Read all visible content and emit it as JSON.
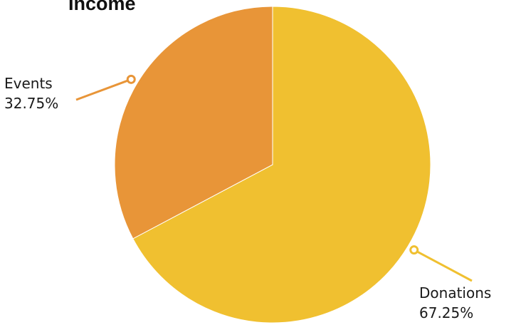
{
  "chart_data": {
    "type": "pie",
    "title": "Income",
    "slices": [
      {
        "label": "Donations",
        "value": 67.25,
        "value_label": "67.25%",
        "color": "#F0C030"
      },
      {
        "label": "Events",
        "value": 32.75,
        "value_label": "32.75%",
        "color": "#E89538"
      }
    ],
    "start_angle": "12 o'clock",
    "direction": "clockwise"
  }
}
